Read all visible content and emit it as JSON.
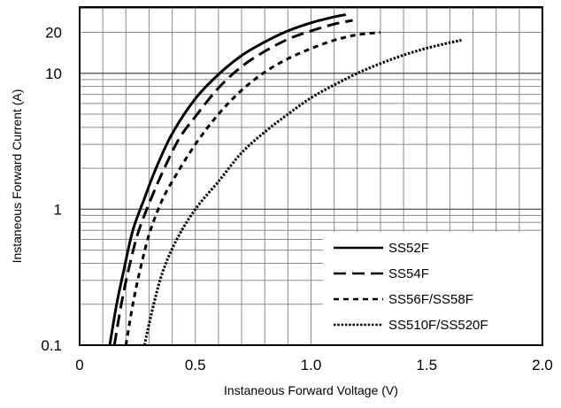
{
  "chart_data": {
    "type": "line",
    "xlabel": "Instaneous Forward Voltage (V)",
    "ylabel": "Instaneous Forward Current  (A)",
    "xlim": [
      0,
      2.0
    ],
    "ylim": [
      0.1,
      30
    ],
    "yscale": "log",
    "grid": true,
    "legend_position": "bottom-right",
    "x_ticks": [
      {
        "value": 0,
        "label": "0"
      },
      {
        "value": 0.5,
        "label": "0.5"
      },
      {
        "value": 1.0,
        "label": "1.0"
      },
      {
        "value": 1.5,
        "label": "1.5"
      },
      {
        "value": 2.0,
        "label": "2.0"
      }
    ],
    "y_ticks": [
      {
        "value": 0.1,
        "label": "0.1"
      },
      {
        "value": 1,
        "label": "1"
      },
      {
        "value": 10,
        "label": "10"
      },
      {
        "value": 20,
        "label": "20"
      }
    ],
    "series": [
      {
        "name": "SS52F",
        "dash": "solid",
        "points": [
          [
            0.13,
            0.1
          ],
          [
            0.16,
            0.2
          ],
          [
            0.19,
            0.35
          ],
          [
            0.23,
            0.7
          ],
          [
            0.28,
            1.2
          ],
          [
            0.33,
            2.0
          ],
          [
            0.4,
            3.6
          ],
          [
            0.5,
            6.5
          ],
          [
            0.6,
            9.8
          ],
          [
            0.7,
            13.5
          ],
          [
            0.8,
            17.0
          ],
          [
            0.9,
            20.5
          ],
          [
            1.0,
            23.5
          ],
          [
            1.1,
            26.0
          ],
          [
            1.15,
            27.0
          ]
        ]
      },
      {
        "name": "SS54F",
        "dash": "long-dash",
        "points": [
          [
            0.15,
            0.1
          ],
          [
            0.18,
            0.2
          ],
          [
            0.21,
            0.35
          ],
          [
            0.25,
            0.65
          ],
          [
            0.3,
            1.1
          ],
          [
            0.36,
            1.9
          ],
          [
            0.43,
            3.3
          ],
          [
            0.5,
            4.8
          ],
          [
            0.6,
            7.8
          ],
          [
            0.7,
            11.2
          ],
          [
            0.8,
            14.5
          ],
          [
            0.9,
            17.8
          ],
          [
            1.0,
            20.5
          ],
          [
            1.1,
            23.0
          ],
          [
            1.18,
            24.5
          ]
        ]
      },
      {
        "name": "SS56F/SS58F",
        "dash": "short-dash",
        "points": [
          [
            0.2,
            0.1
          ],
          [
            0.23,
            0.2
          ],
          [
            0.26,
            0.35
          ],
          [
            0.3,
            0.65
          ],
          [
            0.35,
            1.1
          ],
          [
            0.4,
            1.6
          ],
          [
            0.5,
            3.0
          ],
          [
            0.6,
            5.0
          ],
          [
            0.7,
            7.5
          ],
          [
            0.8,
            10.2
          ],
          [
            0.9,
            12.8
          ],
          [
            1.0,
            15.2
          ],
          [
            1.1,
            17.5
          ],
          [
            1.2,
            19.2
          ],
          [
            1.3,
            20.0
          ]
        ]
      },
      {
        "name": "SS510F/SS520F",
        "dash": "dotted",
        "points": [
          [
            0.28,
            0.1
          ],
          [
            0.32,
            0.2
          ],
          [
            0.36,
            0.35
          ],
          [
            0.42,
            0.6
          ],
          [
            0.5,
            1.0
          ],
          [
            0.6,
            1.6
          ],
          [
            0.7,
            2.6
          ],
          [
            0.8,
            3.7
          ],
          [
            0.9,
            5.0
          ],
          [
            1.0,
            6.6
          ],
          [
            1.1,
            8.2
          ],
          [
            1.2,
            10.0
          ],
          [
            1.3,
            11.8
          ],
          [
            1.4,
            13.6
          ],
          [
            1.5,
            15.3
          ],
          [
            1.6,
            16.8
          ],
          [
            1.65,
            17.5
          ]
        ]
      }
    ]
  }
}
